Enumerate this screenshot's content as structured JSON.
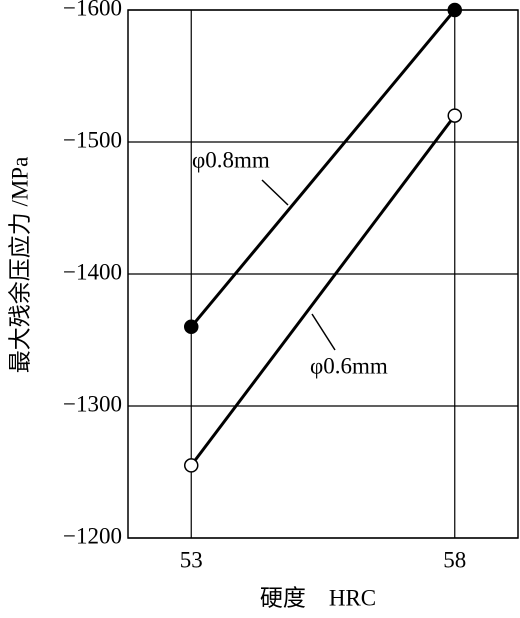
{
  "chart_data": {
    "type": "line",
    "x_label": "硬度　HRC",
    "y_label": "最大残余压应力 /MPa",
    "x": [
      53,
      58
    ],
    "series": [
      {
        "name": "φ0.8mm",
        "color": "#000000",
        "marker": "filled",
        "values": [
          -1360,
          -1600
        ]
      },
      {
        "name": "φ0.6mm",
        "color": "#000000",
        "marker": "open",
        "values": [
          -1255,
          -1520
        ]
      }
    ],
    "xlim": [
      51.8,
      59.2
    ],
    "xticks": [
      53,
      58
    ],
    "ylim": [
      -1200,
      -1600
    ],
    "yticks": [
      {
        "value": -1200,
        "label": "−1200"
      },
      {
        "value": -1300,
        "label": "−1300"
      },
      {
        "value": -1400,
        "label": "−1400"
      },
      {
        "value": -1500,
        "label": "−1500"
      },
      {
        "value": -1600,
        "label": "−1600"
      }
    ],
    "grid": true
  }
}
